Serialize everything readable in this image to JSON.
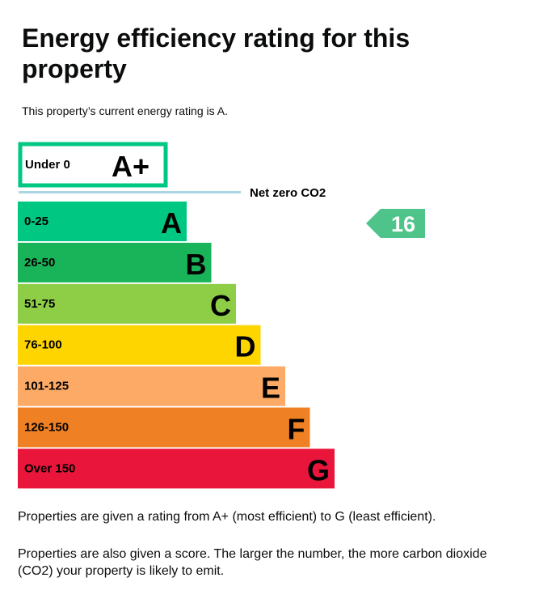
{
  "title": "Energy efficiency rating for this property",
  "intro": "This property’s current energy rating is A.",
  "chart_data": {
    "type": "bar",
    "aplus": {
      "range": "Under 0",
      "letter": "A+",
      "color": "#00c781"
    },
    "net_zero_label": "Net zero CO2",
    "net_zero_color": "#a9d6e2",
    "bands": [
      {
        "range": "0-25",
        "letter": "A",
        "color": "#00c781"
      },
      {
        "range": "26-50",
        "letter": "B",
        "color": "#19b459"
      },
      {
        "range": "51-75",
        "letter": "C",
        "color": "#8dce46"
      },
      {
        "range": "76-100",
        "letter": "D",
        "color": "#ffd500"
      },
      {
        "range": "101-125",
        "letter": "E",
        "color": "#fcaa65"
      },
      {
        "range": "126-150",
        "letter": "F",
        "color": "#ef8023"
      },
      {
        "range": "Over 150",
        "letter": "G",
        "color": "#e9153b"
      }
    ],
    "current": {
      "score": "16",
      "band": "A",
      "color": "#4fc48a"
    }
  },
  "para1": "Properties are given a rating from A+ (most efficient) to G (least efficient).",
  "para2": "Properties are also given a score. The larger the number, the more carbon dioxide (CO2) your property is likely to emit."
}
